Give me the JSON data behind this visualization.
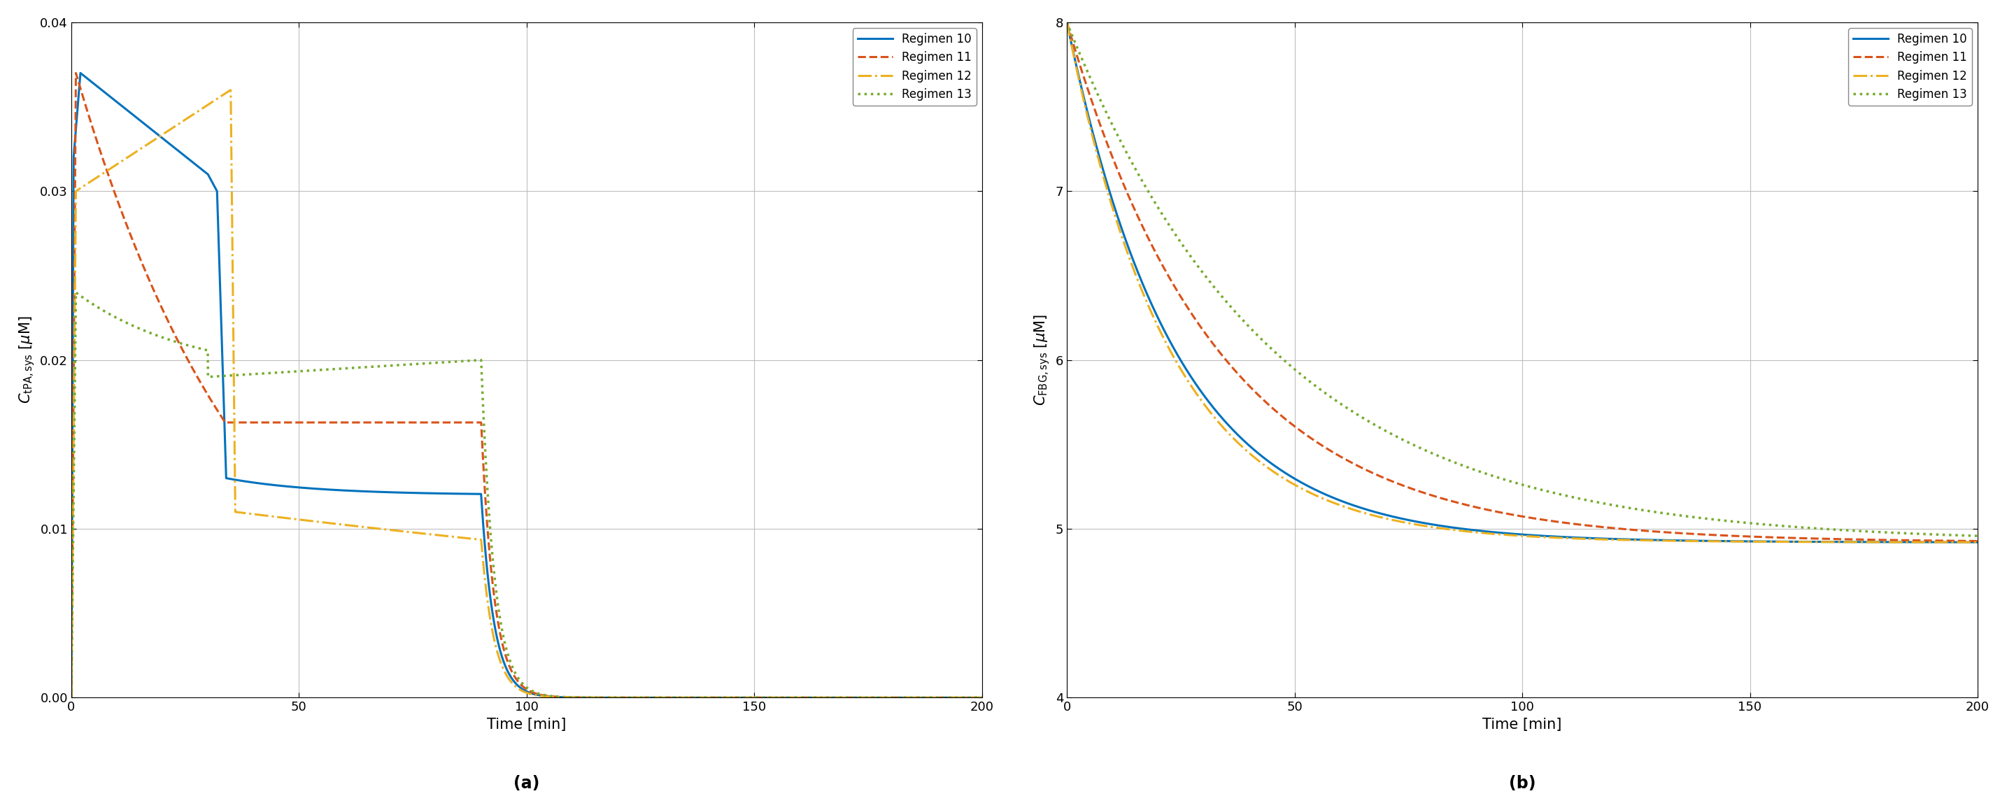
{
  "panel_a": {
    "xlabel": "Time [min]",
    "xlim": [
      0,
      200
    ],
    "ylim": [
      0,
      0.04
    ],
    "yticks": [
      0,
      0.01,
      0.02,
      0.03,
      0.04
    ],
    "xticks": [
      0,
      50,
      100,
      150,
      200
    ],
    "sublabel": "(a)"
  },
  "panel_b": {
    "xlabel": "Time [min]",
    "xlim": [
      0,
      200
    ],
    "ylim": [
      4,
      8
    ],
    "yticks": [
      4,
      5,
      6,
      7,
      8
    ],
    "xticks": [
      0,
      50,
      100,
      150,
      200
    ],
    "sublabel": "(b)"
  },
  "colors": {
    "reg10": "#0072BD",
    "reg11": "#D95319",
    "reg12": "#EDB120",
    "reg13": "#77AC30"
  },
  "legend_labels": [
    "Regimen 10",
    "Regimen 11",
    "Regimen 12",
    "Regimen 13"
  ],
  "linestyles": [
    "-",
    "--",
    "-.",
    ":"
  ],
  "linewidths": [
    2.2,
    2.2,
    2.2,
    2.5
  ]
}
